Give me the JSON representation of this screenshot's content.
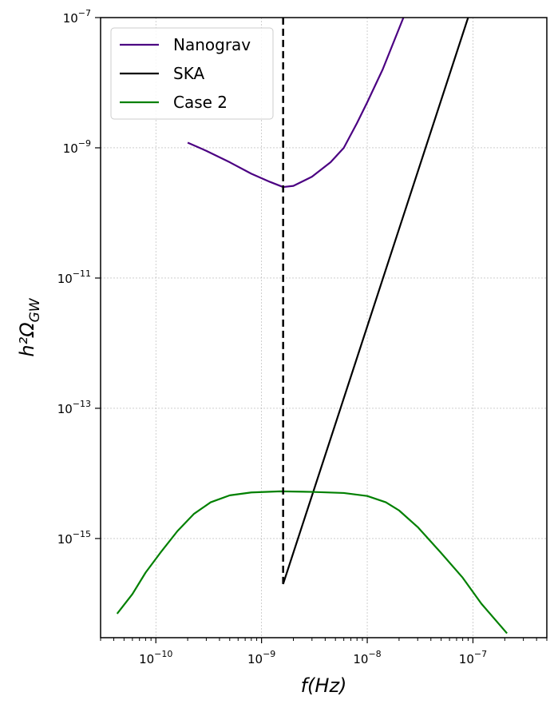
{
  "chart_data": {
    "type": "line",
    "xscale": "log",
    "yscale": "log",
    "xlim": [
      3e-11,
      5e-07
    ],
    "ylim": [
      3e-17,
      1e-07
    ],
    "grid": true,
    "legend_position": "top-left",
    "xlabel": "f(Hz)",
    "ylabel": "h²Ω_GW",
    "x_ticks": [
      {
        "value": 1e-10,
        "mant": "10",
        "exp": "−10"
      },
      {
        "value": 1e-09,
        "mant": "10",
        "exp": "−9"
      },
      {
        "value": 1e-08,
        "mant": "10",
        "exp": "−8"
      },
      {
        "value": 1e-07,
        "mant": "10",
        "exp": "−7"
      }
    ],
    "y_ticks": [
      {
        "value": 1e-15,
        "mant": "10",
        "exp": "−15"
      },
      {
        "value": 1e-13,
        "mant": "10",
        "exp": "−13"
      },
      {
        "value": 1e-11,
        "mant": "10",
        "exp": "−11"
      },
      {
        "value": 1e-09,
        "mant": "10",
        "exp": "−9"
      },
      {
        "value": 1e-07,
        "mant": "10",
        "exp": "−7"
      }
    ],
    "series": [
      {
        "name": "Nanograv",
        "color": "#4b0082",
        "style": "solid",
        "x": [
          2e-10,
          3e-10,
          5e-10,
          8e-10,
          1.2e-09,
          1.6e-09,
          2e-09,
          3e-09,
          4.5e-09,
          6e-09,
          8e-09,
          1e-08,
          1.4e-08,
          2.2e-08
        ],
        "y": [
          1.2e-09,
          9e-10,
          6e-10,
          4e-10,
          3e-10,
          2.5e-10,
          2.6e-10,
          3.6e-10,
          6e-10,
          1e-09,
          2.4e-09,
          5e-09,
          1.6e-08,
          1e-07
        ]
      },
      {
        "name": "SKA",
        "color": "#000000",
        "style": "solid",
        "x": [
          1.6e-09,
          9e-08
        ],
        "y": [
          2e-16,
          1e-07
        ]
      },
      {
        "name": "Case 2",
        "color": "#008000",
        "style": "solid",
        "x": [
          4.3e-11,
          6e-11,
          8e-11,
          1.1e-10,
          1.6e-10,
          2.3e-10,
          3.3e-10,
          5e-10,
          8e-10,
          1.5e-09,
          3e-09,
          6e-09,
          1e-08,
          1.5e-08,
          2e-08,
          3e-08,
          5e-08,
          8e-08,
          1.2e-07,
          2.1e-07
        ],
        "y": [
          7e-17,
          1.4e-16,
          3e-16,
          6e-16,
          1.3e-15,
          2.4e-15,
          3.6e-15,
          4.6e-15,
          5.1e-15,
          5.3e-15,
          5.2e-15,
          5e-15,
          4.5e-15,
          3.6e-15,
          2.7e-15,
          1.5e-15,
          6e-16,
          2.5e-16,
          1e-16,
          3.5e-17
        ]
      },
      {
        "name": "",
        "color": "#000000",
        "style": "dashed",
        "x": [
          1.6e-09,
          1.6e-09
        ],
        "y": [
          2e-16,
          1e-07
        ]
      }
    ],
    "legend": [
      "Nanograv",
      "SKA",
      "Case 2"
    ]
  }
}
